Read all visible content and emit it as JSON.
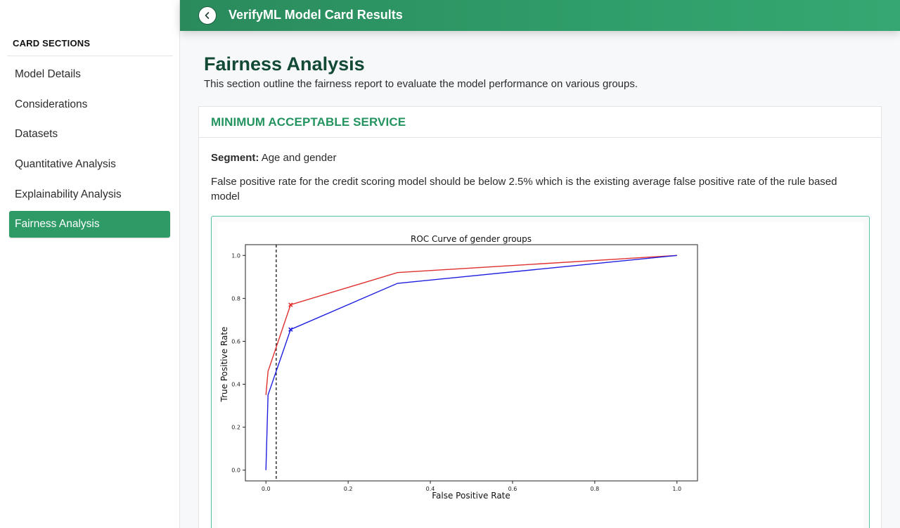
{
  "sidebar": {
    "heading": "CARD SECTIONS",
    "items": [
      {
        "label": "Model Details",
        "active": false
      },
      {
        "label": "Considerations",
        "active": false
      },
      {
        "label": "Datasets",
        "active": false
      },
      {
        "label": "Quantitative Analysis",
        "active": false
      },
      {
        "label": "Explainability Analysis",
        "active": false
      },
      {
        "label": "Fairness Analysis",
        "active": true
      }
    ]
  },
  "header": {
    "title": "VerifyML Model Card Results",
    "back_icon": "chevron-left-icon"
  },
  "main": {
    "title": "Fairness Analysis",
    "description": "This section outline the fairness report to evaluate the model performance on various groups."
  },
  "card": {
    "heading": "MINIMUM ACCEPTABLE SERVICE",
    "segment_label": "Segment:",
    "segment_value": "Age and gender",
    "description": "False positive rate for the credit scoring model should be below 2.5% which is the existing average false positive rate of the rule based model"
  },
  "colors": {
    "accent": "#2e9a66",
    "title": "#124a35",
    "series_red": "#e03131",
    "series_blue": "#1f1fe0"
  },
  "chart_data": {
    "type": "line",
    "title": "ROC Curve of gender groups",
    "xlabel": "False Positive Rate",
    "ylabel": "True Positive Rate",
    "xlim": [
      -0.05,
      1.05
    ],
    "ylim": [
      -0.05,
      1.05
    ],
    "xticks": [
      "0.0",
      "0.2",
      "0.4",
      "0.6",
      "0.8",
      "1.0"
    ],
    "yticks": [
      "0.0",
      "0.2",
      "0.4",
      "0.6",
      "0.8",
      "1.0"
    ],
    "threshold_line_x": 0.025,
    "series": [
      {
        "color": "#e03131",
        "x": [
          0.0,
          0.005,
          0.06,
          0.32,
          1.0
        ],
        "y": [
          0.35,
          0.46,
          0.77,
          0.92,
          1.0
        ],
        "marker_index": 2
      },
      {
        "color": "#1f1fe0",
        "x": [
          0.0,
          0.005,
          0.06,
          0.32,
          1.0
        ],
        "y": [
          0.0,
          0.35,
          0.655,
          0.87,
          1.0
        ],
        "marker_index": 2
      }
    ]
  }
}
